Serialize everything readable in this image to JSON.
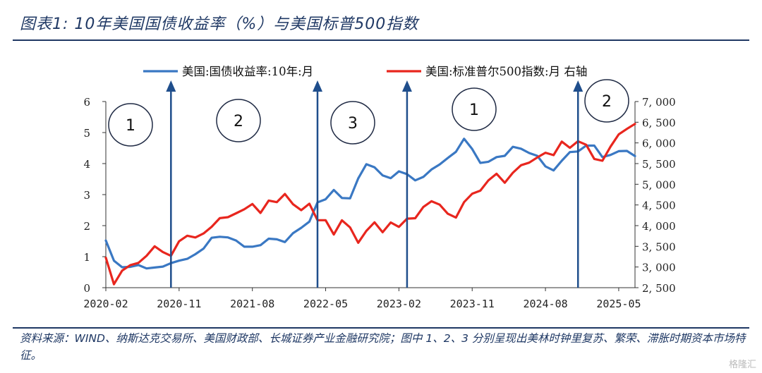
{
  "title": "图表1: 10年美国国债收益率（%）与美国标普500指数",
  "source": "资料来源：WIND、纳斯达克交易所、美国财政部、长城证券产业金融研究院；图中 1、2、3 分别呈现出美林时钟里复苏、繁荣、滞胀时期资本市场特征。",
  "watermark": "格隆汇",
  "colors": {
    "title": "#1f3864",
    "blue_series": "#3a78c3",
    "red_series": "#e8261e",
    "arrow": "#1f4e8c"
  },
  "chart_data": {
    "type": "line",
    "x_ticks": [
      "2020-02",
      "2020-11",
      "2021-08",
      "2022-05",
      "2023-02",
      "2023-11",
      "2024-08",
      "2025-05"
    ],
    "x_range": [
      "2020-02",
      "2025-07"
    ],
    "left_axis": {
      "ylim": [
        0,
        6
      ],
      "ticks": [
        "0",
        "1",
        "2",
        "3",
        "4",
        "5",
        "6"
      ]
    },
    "right_axis": {
      "ylim": [
        2500,
        7000
      ],
      "ticks": [
        "2, 500",
        "3, 000",
        "3, 500",
        "4, 000",
        "4, 500",
        "5, 000",
        "5, 500",
        "6, 000",
        "6, 500",
        "7, 000"
      ]
    },
    "legend": {
      "placement": "top",
      "blue_label": "美国:国债收益率:10年:月",
      "red_label": "美国:标准普尔500指数:月 右轴"
    },
    "series": [
      {
        "name": "美国:国债收益率:10年:月",
        "axis": "left",
        "color": "#3a78c3",
        "values": [
          1.52,
          0.87,
          0.66,
          0.67,
          0.73,
          0.62,
          0.65,
          0.68,
          0.79,
          0.87,
          0.93,
          1.08,
          1.26,
          1.61,
          1.64,
          1.62,
          1.52,
          1.32,
          1.32,
          1.37,
          1.58,
          1.56,
          1.47,
          1.76,
          1.93,
          2.13,
          2.75,
          2.85,
          3.15,
          2.89,
          2.88,
          3.52,
          3.98,
          3.88,
          3.62,
          3.53,
          3.75,
          3.66,
          3.46,
          3.57,
          3.81,
          3.97,
          4.18,
          4.38,
          4.8,
          4.47,
          4.02,
          4.06,
          4.21,
          4.25,
          4.54,
          4.48,
          4.34,
          4.25,
          3.91,
          3.78,
          4.09,
          4.37,
          4.39,
          4.58,
          4.58,
          4.21,
          4.28,
          4.4,
          4.41,
          4.24
        ]
      },
      {
        "name": "美国:标准普尔500指数:月",
        "axis": "right",
        "color": "#e8261e",
        "values": [
          3225,
          2584,
          2912,
          3044,
          3100,
          3271,
          3500,
          3363,
          3270,
          3621,
          3756,
          3714,
          3811,
          3973,
          4181,
          4204,
          4298,
          4395,
          4523,
          4307,
          4605,
          4567,
          4766,
          4516,
          4374,
          4530,
          4132,
          4132,
          3785,
          4130,
          3955,
          3585,
          3872,
          4080,
          3840,
          4076,
          3970,
          4169,
          4179,
          4450,
          4589,
          4508,
          4288,
          4194,
          4568,
          4770,
          4846,
          5096,
          5254,
          5036,
          5278,
          5460,
          5522,
          5648,
          5762,
          5705,
          6032,
          5882,
          6040,
          5955,
          5612,
          5569,
          5912,
          6205,
          6339,
          6460
        ]
      }
    ],
    "annotations": [
      {
        "label": "1",
        "phase": "复苏"
      },
      {
        "label": "2",
        "phase": "繁荣"
      },
      {
        "label": "3",
        "phase": "滞胀"
      },
      {
        "label": "1",
        "phase": "复苏"
      },
      {
        "label": "2",
        "phase": "繁荣"
      }
    ],
    "arrow_dates": [
      "2020-10",
      "2022-04",
      "2023-03",
      "2024-12"
    ],
    "grid": false
  }
}
